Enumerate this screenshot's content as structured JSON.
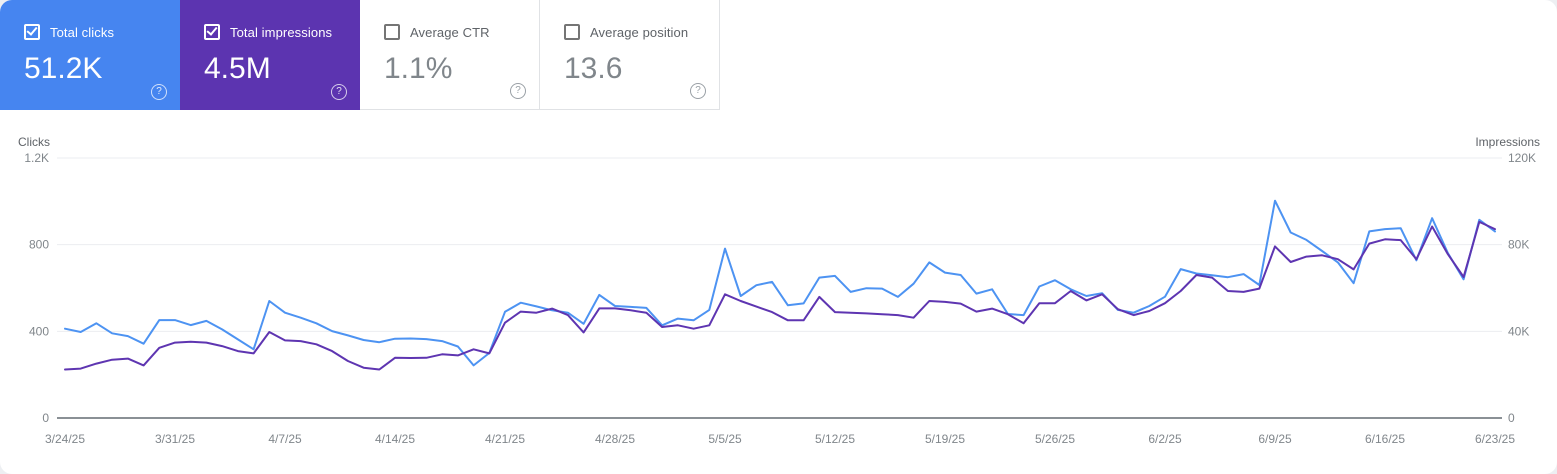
{
  "metrics_cards": [
    {
      "id": "total-clicks",
      "label": "Total clicks",
      "value": "51.2K",
      "checked": true,
      "color": "#4685f0"
    },
    {
      "id": "total-impressions",
      "label": "Total impressions",
      "value": "4.5M",
      "checked": true,
      "color": "#5c34b0"
    },
    {
      "id": "average-ctr",
      "label": "Average CTR",
      "value": "1.1%",
      "checked": false,
      "color": "#ffffff"
    },
    {
      "id": "average-position",
      "label": "Average position",
      "value": "13.6",
      "checked": false,
      "color": "#ffffff"
    }
  ],
  "icons": {
    "help_glyph": "?"
  },
  "colors": {
    "clicks_accent": "#4685f0",
    "impressions_accent": "#5c34b0",
    "clicks_line": "#4d93f2",
    "impressions_line": "#5e35b1",
    "grid": "#ebedf0",
    "axis": "#8a9095",
    "tick_text": "#80868b"
  },
  "chart_data": {
    "type": "line",
    "title": "",
    "grid": true,
    "legend_position": "none",
    "x_tick_labels": [
      "3/24/25",
      "3/31/25",
      "4/7/25",
      "4/14/25",
      "4/21/25",
      "4/28/25",
      "5/5/25",
      "5/12/25",
      "5/19/25",
      "5/26/25",
      "6/2/25",
      "6/9/25",
      "6/16/25",
      "6/23/25"
    ],
    "left_axis": {
      "label": "Clicks",
      "range": [
        0,
        1200
      ],
      "tick_values": [
        0,
        400,
        800,
        1200
      ],
      "tick_labels": [
        "0",
        "400",
        "800",
        "1.2K"
      ]
    },
    "right_axis": {
      "label": "Impressions",
      "range": [
        0,
        120000
      ],
      "tick_values": [
        0,
        40000,
        80000,
        120000
      ],
      "tick_labels": [
        "0",
        "40K",
        "80K",
        "120K"
      ]
    },
    "x": [
      "3/24/25",
      "3/25/25",
      "3/26/25",
      "3/27/25",
      "3/28/25",
      "3/29/25",
      "3/30/25",
      "3/31/25",
      "4/1/25",
      "4/2/25",
      "4/3/25",
      "4/4/25",
      "4/5/25",
      "4/6/25",
      "4/7/25",
      "4/8/25",
      "4/9/25",
      "4/10/25",
      "4/11/25",
      "4/12/25",
      "4/13/25",
      "4/14/25",
      "4/15/25",
      "4/16/25",
      "4/17/25",
      "4/18/25",
      "4/19/25",
      "4/20/25",
      "4/21/25",
      "4/22/25",
      "4/23/25",
      "4/24/25",
      "4/25/25",
      "4/26/25",
      "4/27/25",
      "4/28/25",
      "4/29/25",
      "4/30/25",
      "5/1/25",
      "5/2/25",
      "5/3/25",
      "5/4/25",
      "5/5/25",
      "5/6/25",
      "5/7/25",
      "5/8/25",
      "5/9/25",
      "5/10/25",
      "5/11/25",
      "5/12/25",
      "5/13/25",
      "5/14/25",
      "5/15/25",
      "5/16/25",
      "5/17/25",
      "5/18/25",
      "5/19/25",
      "5/20/25",
      "5/21/25",
      "5/22/25",
      "5/23/25",
      "5/24/25",
      "5/25/25",
      "5/26/25",
      "5/27/25",
      "5/28/25",
      "5/29/25",
      "5/30/25",
      "5/31/25",
      "6/1/25",
      "6/2/25",
      "6/3/25",
      "6/4/25",
      "6/5/25",
      "6/6/25",
      "6/7/25",
      "6/8/25",
      "6/9/25",
      "6/10/25",
      "6/11/25",
      "6/12/25",
      "6/13/25",
      "6/14/25",
      "6/15/25",
      "6/16/25",
      "6/17/25",
      "6/18/25",
      "6/19/25",
      "6/20/25",
      "6/21/25",
      "6/22/25",
      "6/23/25"
    ],
    "series": [
      {
        "name": "Total clicks",
        "axis": "left",
        "color": "#4d93f2",
        "values": [
          412,
          397,
          437,
          391,
          378,
          343,
          452,
          452,
          429,
          448,
          409,
          363,
          317,
          540,
          486,
          463,
          437,
          401,
          381,
          360,
          350,
          366,
          367,
          364,
          355,
          330,
          243,
          300,
          490,
          532,
          515,
          497,
          486,
          435,
          568,
          517,
          513,
          508,
          428,
          459,
          451,
          499,
          782,
          563,
          613,
          628,
          520,
          529,
          648,
          656,
          582,
          599,
          597,
          559,
          620,
          718,
          671,
          660,
          574,
          594,
          480,
          475,
          607,
          636,
          594,
          563,
          576,
          499,
          486,
          517,
          560,
          687,
          667,
          659,
          650,
          664,
          614,
          1003,
          856,
          822,
          771,
          718,
          622,
          861,
          872,
          876,
          728,
          922,
          761,
          640,
          915,
          861
        ]
      },
      {
        "name": "Total impressions",
        "axis": "right",
        "color": "#5e35b1",
        "values": [
          22400,
          22800,
          25100,
          26900,
          27400,
          24300,
          32400,
          34800,
          35200,
          34800,
          33200,
          30900,
          29800,
          39700,
          35800,
          35500,
          34000,
          30900,
          26300,
          23200,
          22400,
          27800,
          27700,
          27800,
          29400,
          28900,
          31700,
          29800,
          44000,
          49100,
          48600,
          50500,
          47500,
          39500,
          50600,
          50600,
          49700,
          48600,
          42000,
          42800,
          41200,
          42800,
          57100,
          54000,
          51400,
          48900,
          45100,
          45100,
          55900,
          48900,
          48600,
          48300,
          47900,
          47500,
          46300,
          54000,
          53600,
          52800,
          49100,
          50500,
          47900,
          43700,
          53000,
          53000,
          58600,
          54300,
          57100,
          50200,
          47500,
          49400,
          53000,
          58600,
          66000,
          64800,
          58600,
          58200,
          59700,
          79200,
          72000,
          74500,
          75100,
          73300,
          68600,
          80500,
          82500,
          82100,
          73300,
          88400,
          75600,
          65100,
          90500,
          87200
        ]
      }
    ]
  }
}
